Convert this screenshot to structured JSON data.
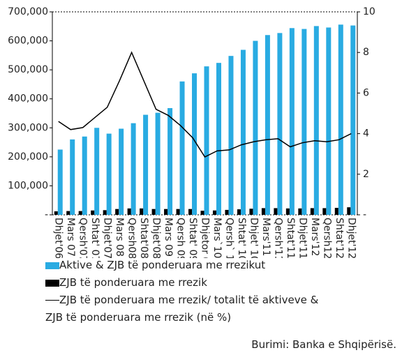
{
  "chart_data": {
    "type": "bar_line",
    "categories": [
      "Dhjet'06",
      "Mars 07",
      "Qersh'07",
      "Shtat' 07",
      "Dhjet'07",
      "Mars 08",
      "Qersh08",
      "Shtat'08",
      "Dhjet'08",
      "Mars 09",
      "Qersh 09",
      "Shtat' 09",
      "Dhjetor 09",
      "Mars`10",
      "Qersh` 10",
      "Shtat' 10",
      "Dhjet' 10",
      "Mars'11",
      "Qersh'11",
      "Shtat'11",
      "Dhjet'11",
      "Mars'12",
      "Qersh12",
      "Shtat'12",
      "Dhjet'12"
    ],
    "series": [
      {
        "name": "Aktive & ZJB të ponderuara me rrezikut",
        "color": "#29abe2",
        "kind": "bar",
        "values": [
          225000,
          260000,
          270000,
          300000,
          280000,
          297000,
          316000,
          345000,
          352000,
          368000,
          460000,
          488000,
          512000,
          524000,
          548000,
          569000,
          600000,
          620000,
          627000,
          644000,
          641000,
          651000,
          646000,
          656000,
          653000
        ]
      },
      {
        "name": "ZJB të ponderuara me rrezik",
        "color": "#000000",
        "kind": "bar",
        "values": [
          12000,
          13000,
          13000,
          15000,
          16000,
          20000,
          22000,
          22000,
          20000,
          20000,
          20000,
          20000,
          14000,
          15000,
          17000,
          19000,
          21000,
          23000,
          23000,
          22000,
          22000,
          23000,
          23000,
          24000,
          26000
        ]
      },
      {
        "name": "ZJB të ponderuara me rrezik/ totalit të aktiveve & ZJB të ponderuara me rrezik (në %)",
        "color": "#000000",
        "kind": "line",
        "axis": "y2",
        "values": [
          4.6,
          4.2,
          4.3,
          4.8,
          5.3,
          6.6,
          8.0,
          6.6,
          5.2,
          4.9,
          4.4,
          3.8,
          2.85,
          3.15,
          3.2,
          3.45,
          3.6,
          3.7,
          3.75,
          3.35,
          3.55,
          3.65,
          3.6,
          3.7,
          4.0
        ]
      }
    ],
    "ylim": [
      0,
      700000
    ],
    "yticks": [
      {
        "value": 0,
        "label": "-"
      },
      {
        "value": 100000,
        "label": "100,000"
      },
      {
        "value": 200000,
        "label": "200,000"
      },
      {
        "value": 300000,
        "label": "300,000"
      },
      {
        "value": 400000,
        "label": "400,000"
      },
      {
        "value": 500000,
        "label": "500,000"
      },
      {
        "value": 600000,
        "label": "600,000"
      },
      {
        "value": 700000,
        "label": "700,000"
      }
    ],
    "y2lim": [
      0,
      10
    ],
    "y2ticks": [
      {
        "value": 0,
        "label": "-"
      },
      2,
      4,
      6,
      8,
      10
    ],
    "source": "Burimi: Banka e Shqipërisë."
  }
}
